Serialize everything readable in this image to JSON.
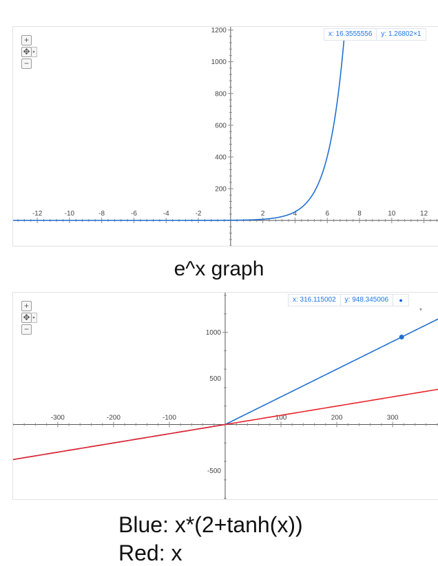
{
  "charts": {
    "chart_data": [
      {
        "type": "line",
        "title": "",
        "xlabel": "",
        "ylabel": "",
        "xlim": [
          -13.5,
          13.0
        ],
        "ylim": [
          -160,
          1220
        ],
        "x_ticks": [
          -12,
          -10,
          -8,
          -6,
          -4,
          -2,
          2,
          4,
          6,
          8,
          10,
          12
        ],
        "y_ticks": [
          200,
          400,
          600,
          800,
          1000
        ],
        "top_tick_label": "1200",
        "grid": false,
        "series": [
          {
            "function": "exp(x)",
            "color": "#1f6fd1",
            "x_range": [
              -13.5,
              7.05
            ]
          }
        ],
        "readout": {
          "x": "x: 16.3555556",
          "y": "y: 1.26802×1"
        }
      },
      {
        "type": "line",
        "title": "",
        "xlabel": "",
        "ylabel": "",
        "xlim": [
          -380,
          385
        ],
        "ylim": [
          -810,
          1430
        ],
        "x_ticks": [
          -300,
          -200,
          -100,
          100,
          200,
          300
        ],
        "y_ticks": [
          -500,
          500,
          1000
        ],
        "grid": false,
        "series": [
          {
            "function": "x*(2+tanh(x))",
            "color": "#1f6fd1"
          },
          {
            "function": "x",
            "color": "#e8232a"
          }
        ],
        "marker": {
          "x": 316.115002,
          "y": 948.345006,
          "color": "#1f6fd1"
        },
        "readout": {
          "x": "x: 316.115002",
          "y": "y: 948.345006"
        }
      }
    ]
  },
  "captions": {
    "chart1": "e^x graph",
    "chart2_line1": "Blue: x*(2+tanh(x))",
    "chart2_line2": "Red: x"
  },
  "controls": {
    "zoom_in": "+",
    "pan": "✥",
    "pan_right": "▸",
    "zoom_out": "−",
    "readout_dot": "●",
    "readout_dropdown": "▾"
  },
  "icons": [
    "zoom-in-icon",
    "pan-icon",
    "zoom-out-icon"
  ]
}
